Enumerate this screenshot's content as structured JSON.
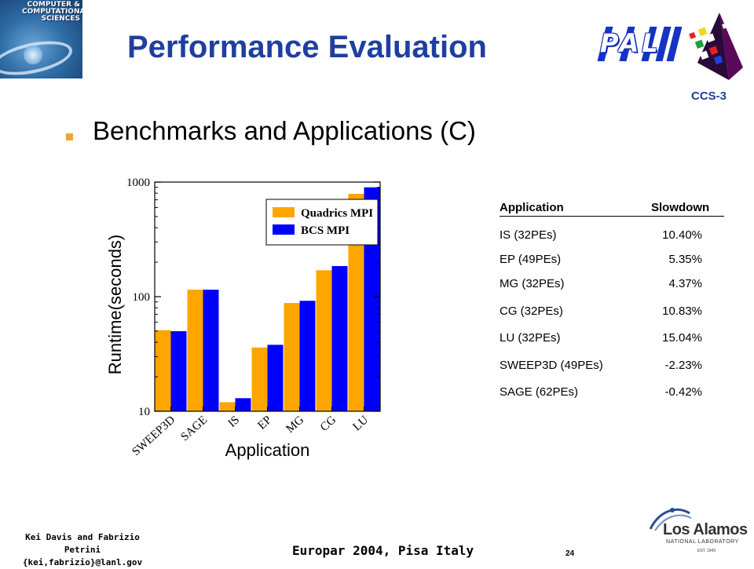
{
  "header": {
    "logo_lines": [
      "COMPUTER &",
      "COMPUTATIONAL",
      "SCIENCES"
    ],
    "title": "Performance Evaluation",
    "pal_logo_text": "PAL",
    "group_label": "CCS-3"
  },
  "bullet": {
    "text": "Benchmarks and Applications (C)",
    "marker_color": "#f2a33a"
  },
  "chart_data": {
    "type": "bar",
    "scale": "log",
    "categories": [
      "SWEEP3D",
      "SAGE",
      "IS",
      "EP",
      "MG",
      "CG",
      "LU"
    ],
    "series": [
      {
        "name": "Quadrics MPI",
        "color": "#ffa500",
        "values": [
          51,
          115,
          12,
          36,
          88,
          170,
          790
        ]
      },
      {
        "name": "BCS MPI",
        "color": "#0000ff",
        "values": [
          50,
          115,
          13,
          38,
          92,
          185,
          900
        ]
      }
    ],
    "ylim": [
      10,
      1000
    ],
    "yticks": [
      {
        "value": 10,
        "label": "10"
      },
      {
        "value": 100,
        "label": "100"
      },
      {
        "value": 1000,
        "label": "1000"
      }
    ],
    "xlabel": "Application",
    "ylabel": "Runtime(seconds)",
    "legend_position": "top-left",
    "grid": false
  },
  "table": {
    "headers": [
      "Application",
      "Slowdown"
    ],
    "rows": [
      [
        "IS (32PEs)",
        "10.40%"
      ],
      [
        "EP (49PEs)",
        "5.35%"
      ],
      [
        "MG (32PEs)",
        "4.37%"
      ],
      [
        "CG (32PEs)",
        "10.83%"
      ],
      [
        "LU (32PEs)",
        "15.04%"
      ],
      [
        "SWEEP3D (49PEs)",
        "-2.23%"
      ],
      [
        "SAGE (62PEs)",
        "-0.42%"
      ]
    ]
  },
  "footer": {
    "authors": "Kei Davis and Fabrizio Petrini",
    "emails": "{kei,fabrizio}@lanl.gov",
    "conference": "Europar 2004, Pisa Italy",
    "page_number": "24"
  },
  "lanl_logo": {
    "name": "Los Alamos",
    "subtitle": "NATIONAL LABORATORY",
    "established": "EST. 1943"
  },
  "colors": {
    "title": "#1f3f9f",
    "pal_blue": "#1533c4",
    "bullet": "#f2a33a"
  }
}
